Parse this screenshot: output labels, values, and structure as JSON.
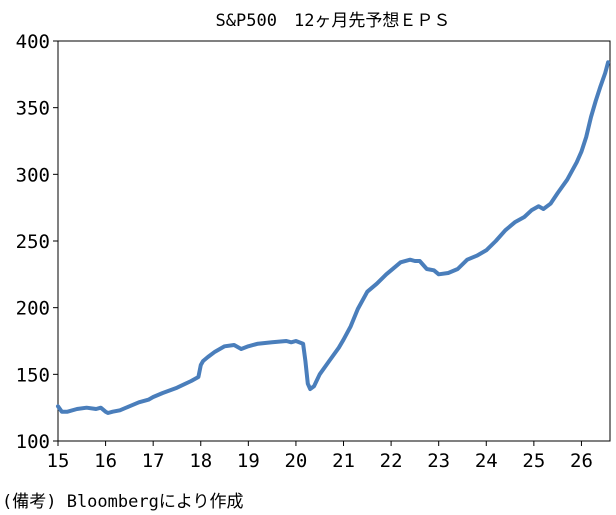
{
  "chart_data": {
    "type": "line",
    "title": "S&P500　12ヶ月先予想ＥＰＳ",
    "xlabel": "",
    "ylabel": "",
    "xlim": [
      15,
      26.6
    ],
    "ylim": [
      100,
      400
    ],
    "xticks": [
      15,
      16,
      17,
      18,
      19,
      20,
      21,
      22,
      23,
      24,
      25,
      26
    ],
    "xtick_labels": [
      "15",
      "16",
      "17",
      "18",
      "19",
      "20",
      "21",
      "22",
      "23",
      "24",
      "25",
      "26"
    ],
    "yticks": [
      100,
      150,
      200,
      250,
      300,
      350,
      400
    ],
    "ytick_labels": [
      "100",
      "150",
      "200",
      "250",
      "300",
      "350",
      "400"
    ],
    "grid": false,
    "legend": "none",
    "series": [
      {
        "color": "#4a7ebb",
        "x": [
          15.0,
          15.08,
          15.2,
          15.4,
          15.6,
          15.8,
          15.9,
          16.0,
          16.05,
          16.15,
          16.3,
          16.5,
          16.7,
          16.9,
          17.0,
          17.2,
          17.5,
          17.8,
          17.95,
          18.0,
          18.05,
          18.15,
          18.3,
          18.5,
          18.7,
          18.85,
          19.0,
          19.2,
          19.5,
          19.8,
          19.9,
          20.0,
          20.15,
          20.2,
          20.25,
          20.3,
          20.38,
          20.5,
          20.7,
          20.9,
          21.0,
          21.15,
          21.3,
          21.5,
          21.7,
          21.9,
          22.0,
          22.2,
          22.4,
          22.5,
          22.6,
          22.75,
          22.9,
          23.0,
          23.2,
          23.4,
          23.6,
          23.8,
          24.0,
          24.2,
          24.4,
          24.6,
          24.8,
          24.95,
          25.1,
          25.2,
          25.35,
          25.5,
          25.7,
          25.9,
          26.0,
          26.1,
          26.2,
          26.3,
          26.4,
          26.5,
          26.56
        ],
        "y": [
          126,
          122,
          122,
          124,
          125,
          124,
          125,
          122,
          121,
          122,
          123,
          126,
          129,
          131,
          133,
          136,
          140,
          145,
          148,
          157,
          160,
          163,
          167,
          171,
          172,
          169,
          171,
          173,
          174,
          175,
          174,
          175,
          173,
          160,
          143,
          139,
          141,
          150,
          160,
          170,
          176,
          186,
          199,
          212,
          218,
          225,
          228,
          234,
          236,
          235,
          235,
          229,
          228,
          225,
          226,
          229,
          236,
          239,
          243,
          250,
          258,
          264,
          268,
          273,
          276,
          274,
          278,
          286,
          296,
          309,
          317,
          328,
          343,
          355,
          366,
          376,
          384
        ]
      }
    ]
  },
  "note": "(備考) Bloombergにより作成"
}
